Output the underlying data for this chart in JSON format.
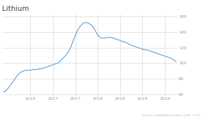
{
  "title": "Lithium",
  "title_fontsize": 7.5,
  "y_ticks": [
    60,
    80,
    100,
    120,
    140,
    160
  ],
  "x_tick_labels": [
    "2016",
    "2017",
    "2017",
    "2018",
    "2018",
    "2019",
    "2019"
  ],
  "x_tick_positions": [
    0.155,
    0.285,
    0.415,
    0.545,
    0.675,
    0.805,
    0.935
  ],
  "source_text": "SOURCE: TRADINGECONOMICS.COM  |  OTC",
  "line_color": "#5b9bd5",
  "bg_color": "#ffffff",
  "grid_color": "#d8d8d8",
  "time_points": [
    0.0,
    0.013,
    0.026,
    0.039,
    0.052,
    0.065,
    0.078,
    0.091,
    0.104,
    0.117,
    0.13,
    0.143,
    0.156,
    0.169,
    0.182,
    0.195,
    0.208,
    0.221,
    0.234,
    0.247,
    0.26,
    0.273,
    0.286,
    0.299,
    0.312,
    0.325,
    0.338,
    0.351,
    0.364,
    0.377,
    0.39,
    0.403,
    0.416,
    0.429,
    0.442,
    0.455,
    0.468,
    0.481,
    0.494,
    0.507,
    0.52,
    0.533,
    0.546,
    0.559,
    0.572,
    0.585,
    0.598,
    0.611,
    0.624,
    0.637,
    0.65,
    0.663,
    0.676,
    0.689,
    0.702,
    0.715,
    0.728,
    0.741,
    0.754,
    0.767,
    0.78,
    0.793,
    0.806,
    0.819,
    0.832,
    0.845,
    0.858,
    0.871,
    0.884,
    0.897,
    0.91,
    0.923,
    0.936,
    0.949,
    0.962,
    0.975,
    0.988,
    1.0
  ],
  "values": [
    63,
    65,
    68,
    72,
    76,
    80,
    84,
    87,
    89,
    90,
    91,
    91,
    91,
    92,
    92,
    92,
    93,
    93,
    94,
    95,
    96,
    97,
    98,
    99,
    100,
    102,
    105,
    108,
    111,
    115,
    121,
    129,
    136,
    142,
    147,
    150,
    152,
    152,
    151,
    149,
    146,
    141,
    136,
    133,
    132,
    132,
    133,
    133,
    133,
    132,
    131,
    130,
    129,
    128,
    127,
    126,
    124,
    123,
    122,
    121,
    120,
    119,
    118,
    117,
    117,
    116,
    115,
    114,
    113,
    112,
    111,
    110,
    109,
    108,
    107,
    106,
    104,
    102
  ],
  "ylim": [
    58,
    163
  ],
  "xlim": [
    -0.01,
    1.01
  ]
}
